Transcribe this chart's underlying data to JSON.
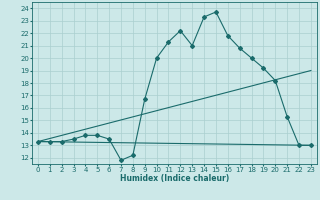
{
  "bg_color": "#cce8e8",
  "grid_color": "#aacfcf",
  "line_color": "#1a6b6b",
  "xlabel": "Humidex (Indice chaleur)",
  "xlim": [
    -0.5,
    23.5
  ],
  "ylim": [
    11.5,
    24.5
  ],
  "yticks": [
    12,
    13,
    14,
    15,
    16,
    17,
    18,
    19,
    20,
    21,
    22,
    23,
    24
  ],
  "xticks": [
    0,
    1,
    2,
    3,
    4,
    5,
    6,
    7,
    8,
    9,
    10,
    11,
    12,
    13,
    14,
    15,
    16,
    17,
    18,
    19,
    20,
    21,
    22,
    23
  ],
  "series1_x": [
    0,
    1,
    2,
    3,
    4,
    5,
    6,
    7,
    8,
    9,
    10,
    11,
    12,
    13,
    14,
    15,
    16,
    17,
    18,
    19,
    20,
    21,
    22,
    23
  ],
  "series1_y": [
    13.3,
    13.3,
    13.3,
    13.5,
    13.8,
    13.8,
    13.5,
    11.8,
    12.2,
    16.7,
    20.0,
    21.3,
    22.2,
    21.0,
    23.3,
    23.7,
    21.8,
    20.8,
    20.0,
    19.2,
    18.2,
    15.3,
    13.0,
    13.0
  ],
  "series2_x": [
    0,
    23
  ],
  "series2_y": [
    13.3,
    13.0
  ],
  "series3_x": [
    0,
    23
  ],
  "series3_y": [
    13.3,
    19.0
  ],
  "tick_fontsize": 5.0,
  "xlabel_fontsize": 5.5,
  "lw": 0.8,
  "marker_size": 2.0
}
